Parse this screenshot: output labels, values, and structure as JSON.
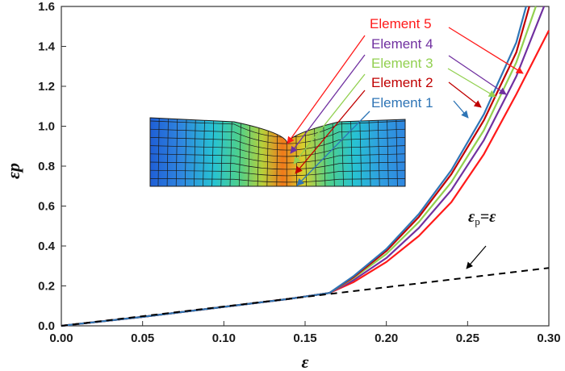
{
  "chart_data": {
    "type": "line",
    "xlabel": "ε",
    "ylabel": "εp",
    "xlim": [
      0,
      0.3
    ],
    "ylim": [
      0,
      1.6
    ],
    "x_ticks": [
      "0.00",
      "0.05",
      "0.10",
      "0.15",
      "0.20",
      "0.25",
      "0.30"
    ],
    "y_ticks": [
      "0.0",
      "0.2",
      "0.4",
      "0.6",
      "0.8",
      "1.0",
      "1.2",
      "1.4",
      "1.6"
    ],
    "grid": false,
    "legend_placement": "top-right",
    "series": [
      {
        "name": "Element 5",
        "color": "#ff1a1a",
        "x": [
          0,
          0.05,
          0.1,
          0.14,
          0.165,
          0.18,
          0.2,
          0.22,
          0.24,
          0.26,
          0.28,
          0.3
        ],
        "y": [
          0,
          0.045,
          0.095,
          0.135,
          0.165,
          0.22,
          0.32,
          0.45,
          0.62,
          0.86,
          1.16,
          1.48
        ]
      },
      {
        "name": "Element 4",
        "color": "#7030a0",
        "x": [
          0,
          0.05,
          0.1,
          0.14,
          0.165,
          0.18,
          0.2,
          0.22,
          0.24,
          0.26,
          0.28,
          0.297
        ],
        "y": [
          0,
          0.045,
          0.095,
          0.135,
          0.165,
          0.23,
          0.34,
          0.49,
          0.68,
          0.93,
          1.25,
          1.6
        ]
      },
      {
        "name": "Element 3",
        "color": "#92d050",
        "x": [
          0,
          0.05,
          0.1,
          0.14,
          0.165,
          0.18,
          0.2,
          0.22,
          0.24,
          0.26,
          0.28,
          0.292
        ],
        "y": [
          0,
          0.045,
          0.095,
          0.135,
          0.165,
          0.24,
          0.36,
          0.52,
          0.72,
          0.98,
          1.32,
          1.6
        ]
      },
      {
        "name": "Element 2",
        "color": "#c00000",
        "x": [
          0,
          0.05,
          0.1,
          0.14,
          0.165,
          0.18,
          0.2,
          0.22,
          0.24,
          0.26,
          0.28,
          0.288
        ],
        "y": [
          0,
          0.045,
          0.095,
          0.135,
          0.165,
          0.245,
          0.375,
          0.545,
          0.76,
          1.03,
          1.37,
          1.6
        ]
      },
      {
        "name": "Element 1",
        "color": "#2e75b6",
        "x": [
          0,
          0.05,
          0.1,
          0.14,
          0.165,
          0.18,
          0.2,
          0.22,
          0.24,
          0.26,
          0.28,
          0.286
        ],
        "y": [
          0,
          0.045,
          0.095,
          0.135,
          0.165,
          0.25,
          0.385,
          0.56,
          0.78,
          1.06,
          1.42,
          1.6
        ]
      },
      {
        "name": "εp=ε",
        "color": "#000000",
        "dashed": true,
        "x": [
          0,
          0.3
        ],
        "y": [
          0,
          0.29
        ]
      }
    ],
    "annotation": {
      "text_main": "ε",
      "text_sub": "p",
      "text_tail": "=ε"
    },
    "inset": {
      "description_free": true
    }
  }
}
